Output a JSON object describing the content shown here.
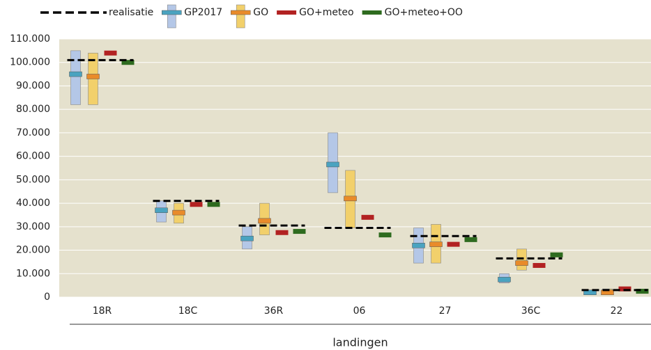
{
  "chart_data": {
    "type": "range-marker",
    "xlabel": "landingen",
    "categories": [
      "18R",
      "18C",
      "36R",
      "06",
      "27",
      "36C",
      "22"
    ],
    "ylim": [
      0,
      110000
    ],
    "yticks": [
      0,
      {
        "value": 10000,
        "label": "10.000"
      },
      {
        "value": 20000,
        "label": "20.000"
      },
      {
        "value": 30000,
        "label": "30.000"
      },
      {
        "value": 40000,
        "label": "40.000"
      },
      {
        "value": 50000,
        "label": "50.000"
      },
      {
        "value": 60000,
        "label": "60.000"
      },
      {
        "value": 70000,
        "label": "70.000"
      },
      {
        "value": 80000,
        "label": "80.000"
      },
      {
        "value": 90000,
        "label": "90.000"
      },
      {
        "value": 100000,
        "label": "100.000"
      },
      {
        "value": 110000,
        "label": "110.000"
      }
    ],
    "grid": true,
    "series": [
      {
        "name": "realisatie",
        "style": "dashed",
        "color": "#000000",
        "values": [
          101000,
          41000,
          30500,
          29500,
          26000,
          16500,
          3000
        ]
      },
      {
        "name": "GP2017",
        "style": "range",
        "color": "#4aa3c0",
        "range_color": "#b4c7e7",
        "values": [
          95000,
          37000,
          25000,
          56500,
          22000,
          7500,
          2000
        ],
        "low": [
          82000,
          32000,
          20500,
          44500,
          14500,
          6000,
          1000
        ],
        "high": [
          105000,
          41000,
          30000,
          70000,
          29500,
          10000,
          3000
        ]
      },
      {
        "name": "GO",
        "style": "range",
        "color": "#e98b2a",
        "range_color": "#f2d06b",
        "values": [
          94000,
          36000,
          32500,
          42000,
          22500,
          14500,
          2000
        ],
        "low": [
          82000,
          31500,
          26500,
          29500,
          14500,
          11500,
          1000
        ],
        "high": [
          104000,
          40000,
          40000,
          54000,
          31000,
          20500,
          3500
        ]
      },
      {
        "name": "GO+meteo",
        "style": "marker",
        "color": "#b22222",
        "values": [
          104000,
          39500,
          27500,
          34000,
          22500,
          13500,
          3500
        ]
      },
      {
        "name": "GO+meteo+OO",
        "style": "marker",
        "color": "#2e6b1f",
        "values": [
          100000,
          39500,
          28000,
          26500,
          24500,
          18000,
          2500
        ]
      }
    ]
  }
}
